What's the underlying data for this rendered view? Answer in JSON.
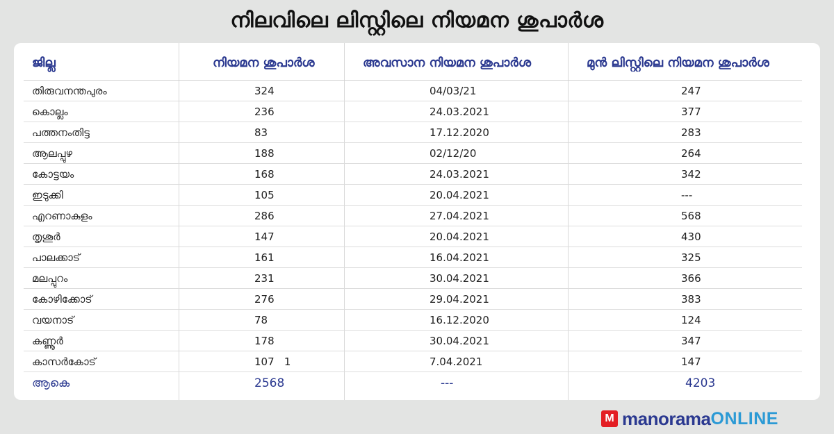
{
  "title": "നിലവിലെ ലിസ്റ്റിലെ നിയമന ശുപാർശ",
  "table": {
    "headers": [
      "ജില്ല",
      "നിയമന ശുപാർശ",
      "അവസാന നിയമന ശുപാർശ",
      "മുൻ ലിസ്റ്റിലെ നിയമന ശുപാർശ"
    ],
    "rows": [
      [
        "തിരുവനന്തപുരം",
        "324",
        "04/03/21",
        "247"
      ],
      [
        "കൊല്ലം",
        "236",
        "24.03.2021",
        "377"
      ],
      [
        "പത്തനംതിട്ട",
        "83",
        "17.12.2020",
        "283"
      ],
      [
        "ആലപ്പുഴ",
        "188",
        "02/12/20",
        "264"
      ],
      [
        "കോട്ടയം",
        "168",
        "24.03.2021",
        "342"
      ],
      [
        "ഇടുക്കി",
        "105",
        "20.04.2021",
        "---"
      ],
      [
        "എറണാകുളം",
        "286",
        "27.04.2021",
        "568"
      ],
      [
        "തൃശൂർ",
        "147",
        "20.04.2021",
        "430"
      ],
      [
        "പാലക്കാട്",
        "161",
        "16.04.2021",
        "325"
      ],
      [
        "മലപ്പുറം",
        "231",
        "30.04.2021",
        "366"
      ],
      [
        "കോഴിക്കോട്",
        "276",
        "29.04.2021",
        "383"
      ],
      [
        "വയനാട്",
        "78",
        "16.12.2020",
        "124"
      ],
      [
        "കണ്ണൂർ",
        "178",
        "30.04.2021",
        "347"
      ],
      [
        "കാസർകോട്",
        "107   1",
        "7.04.2021",
        "147"
      ]
    ],
    "total": [
      "ആകെ",
      "2568",
      "---",
      "4203"
    ]
  },
  "logo": {
    "mark": "M",
    "text_main": "manorama",
    "text_accent": "ONLINE",
    "colors": {
      "mark": "#e31e24",
      "main": "#2b3990",
      "accent": "#2c9ad5"
    }
  },
  "colors": {
    "header_text": "#2b3990",
    "background": "#e3e4e3",
    "card": "#ffffff"
  }
}
